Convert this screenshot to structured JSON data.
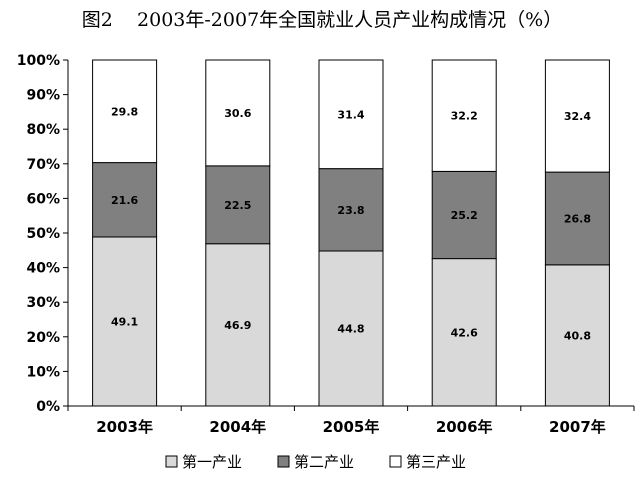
{
  "chart_data": {
    "type": "bar",
    "stacked": true,
    "percent_stacked": true,
    "title": "图2    2003年-2007年全国就业人员产业构成情况（%）",
    "categories": [
      "2003年",
      "2004年",
      "2005年",
      "2006年",
      "2007年"
    ],
    "series": [
      {
        "name": "第一产业",
        "values": [
          49.1,
          46.9,
          44.8,
          42.6,
          40.8
        ],
        "color": "#d9d9d9"
      },
      {
        "name": "第二产业",
        "values": [
          21.6,
          22.5,
          23.8,
          25.2,
          26.8
        ],
        "color": "#808080"
      },
      {
        "name": "第三产业",
        "values": [
          29.8,
          30.6,
          31.4,
          32.2,
          32.4
        ],
        "color": "#ffffff"
      }
    ],
    "y_ticks": [
      "0%",
      "10%",
      "20%",
      "30%",
      "40%",
      "50%",
      "60%",
      "70%",
      "80%",
      "90%",
      "100%"
    ],
    "ylim": [
      0,
      100
    ],
    "grid": false,
    "legend_position": "bottom",
    "data_labels": true
  }
}
